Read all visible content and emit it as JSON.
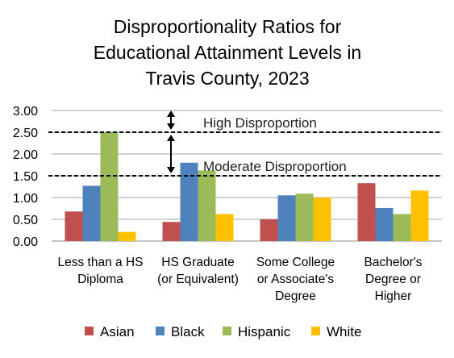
{
  "chart_data": {
    "type": "bar",
    "title_lines": [
      "Disproportionality Ratios for",
      "Educational Attainment Levels in",
      "Travis County, 2023"
    ],
    "categories": [
      [
        "Less than a HS",
        "Diploma"
      ],
      [
        "HS Graduate",
        "(or Equivalent)"
      ],
      [
        "Some College",
        "or Associate's",
        "Degree"
      ],
      [
        "Bachelor's",
        "Degree or",
        "Higher"
      ]
    ],
    "series": [
      {
        "name": "Asian",
        "color": "#C0504D",
        "values": [
          0.68,
          0.44,
          0.5,
          1.33
        ]
      },
      {
        "name": "Black",
        "color": "#4F81BD",
        "values": [
          1.27,
          1.8,
          1.05,
          0.76
        ]
      },
      {
        "name": "Hispanic",
        "color": "#9BBB59",
        "values": [
          2.5,
          1.62,
          1.09,
          0.62
        ]
      },
      {
        "name": "White",
        "color": "#FFC000",
        "values": [
          0.21,
          0.62,
          1.0,
          1.16
        ]
      }
    ],
    "ylim": [
      0,
      3.0
    ],
    "yticks": [
      "0.00",
      "0.50",
      "1.00",
      "1.50",
      "2.00",
      "2.50",
      "3.00"
    ],
    "grid": true,
    "legend_position": "bottom",
    "thresholds": [
      {
        "label": "High Disproportion",
        "value": 2.5
      },
      {
        "label": "Moderate Disproportion",
        "value": 1.5
      }
    ]
  }
}
